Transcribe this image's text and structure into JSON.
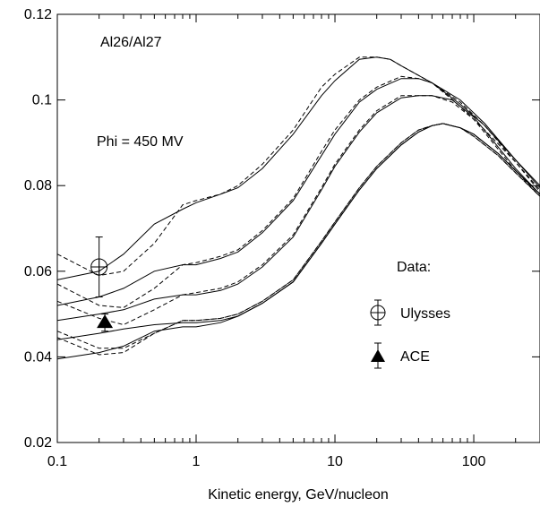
{
  "chart_data": {
    "type": "line",
    "title": "",
    "annotations": [
      "Al26/Al27",
      "Phi = 450 MV"
    ],
    "xlabel": "Kinetic energy, GeV/nucleon",
    "ylabel": "",
    "xscale": "log",
    "xlim": [
      0.1,
      300
    ],
    "ylim": [
      0.02,
      0.12
    ],
    "x_ticks": [
      0.1,
      1,
      10,
      100
    ],
    "x_tick_labels": [
      "0.1",
      "1",
      "10",
      "100"
    ],
    "y_ticks": [
      0.02,
      0.04,
      0.06,
      0.08,
      0.1,
      0.12
    ],
    "y_tick_labels": [
      "0.02",
      "0.04",
      "0.06",
      "0.08",
      "0.1",
      "0.12"
    ],
    "grid": false,
    "legend": {
      "title": "Data:",
      "placement": "right",
      "entries": [
        {
          "label": "Ulysses",
          "marker": "circle-cross-open"
        },
        {
          "label": "ACE",
          "marker": "triangle-filled"
        }
      ]
    },
    "series": [
      {
        "style": "solid",
        "x": [
          0.1,
          0.2,
          0.3,
          0.5,
          0.8,
          1,
          1.5,
          2,
          3,
          5,
          8,
          10,
          15,
          20,
          25,
          30,
          50,
          80,
          120,
          200,
          300
        ],
        "y": [
          0.058,
          0.06,
          0.064,
          0.071,
          0.0745,
          0.076,
          0.078,
          0.0795,
          0.084,
          0.092,
          0.101,
          0.1045,
          0.1095,
          0.11,
          0.1095,
          0.108,
          0.104,
          0.099,
          0.094,
          0.086,
          0.08
        ]
      },
      {
        "style": "dashed",
        "x": [
          0.1,
          0.2,
          0.3,
          0.5,
          0.8,
          1,
          1.5,
          2,
          3,
          5,
          8,
          10,
          15,
          20,
          25,
          30,
          50,
          80,
          120,
          200,
          300
        ],
        "y": [
          0.064,
          0.059,
          0.06,
          0.0665,
          0.0755,
          0.0765,
          0.078,
          0.08,
          0.085,
          0.093,
          0.103,
          0.106,
          0.11,
          0.11,
          0.1095,
          0.108,
          0.104,
          0.0985,
          0.093,
          0.0855,
          0.079
        ]
      },
      {
        "style": "solid",
        "x": [
          0.1,
          0.2,
          0.3,
          0.5,
          0.8,
          1,
          1.5,
          2,
          3,
          5,
          8,
          10,
          15,
          20,
          30,
          40,
          50,
          80,
          120,
          200,
          300
        ],
        "y": [
          0.052,
          0.054,
          0.056,
          0.06,
          0.0615,
          0.0615,
          0.063,
          0.0645,
          0.069,
          0.0765,
          0.087,
          0.092,
          0.0995,
          0.1025,
          0.105,
          0.105,
          0.104,
          0.1,
          0.0945,
          0.086,
          0.0795
        ]
      },
      {
        "style": "dashed",
        "x": [
          0.1,
          0.2,
          0.3,
          0.5,
          0.8,
          1,
          1.5,
          2,
          3,
          5,
          8,
          10,
          15,
          20,
          30,
          40,
          50,
          80,
          120,
          200,
          300
        ],
        "y": [
          0.057,
          0.052,
          0.0515,
          0.056,
          0.0615,
          0.062,
          0.0635,
          0.065,
          0.0695,
          0.077,
          0.088,
          0.093,
          0.1,
          0.103,
          0.1055,
          0.105,
          0.104,
          0.0995,
          0.094,
          0.0855,
          0.0785
        ]
      },
      {
        "style": "solid",
        "x": [
          0.1,
          0.2,
          0.3,
          0.5,
          0.8,
          1,
          1.5,
          2,
          3,
          5,
          8,
          10,
          15,
          20,
          30,
          40,
          50,
          70,
          100,
          150,
          200,
          300
        ],
        "y": [
          0.0485,
          0.05,
          0.051,
          0.0535,
          0.0545,
          0.0545,
          0.0555,
          0.057,
          0.061,
          0.068,
          0.079,
          0.0845,
          0.0925,
          0.097,
          0.1005,
          0.101,
          0.101,
          0.1,
          0.096,
          0.089,
          0.084,
          0.078
        ]
      },
      {
        "style": "dashed",
        "x": [
          0.1,
          0.2,
          0.3,
          0.5,
          0.8,
          1,
          1.5,
          2,
          3,
          5,
          8,
          10,
          15,
          20,
          30,
          40,
          50,
          70,
          100,
          150,
          200,
          300
        ],
        "y": [
          0.053,
          0.049,
          0.0475,
          0.051,
          0.0545,
          0.055,
          0.056,
          0.0575,
          0.0615,
          0.0685,
          0.0795,
          0.085,
          0.093,
          0.0975,
          0.101,
          0.101,
          0.101,
          0.0995,
          0.0955,
          0.0885,
          0.0835,
          0.0775
        ]
      },
      {
        "style": "solid",
        "x": [
          0.1,
          0.2,
          0.3,
          0.5,
          0.8,
          1,
          1.5,
          2,
          3,
          5,
          8,
          10,
          15,
          20,
          30,
          40,
          50,
          60,
          80,
          100,
          150,
          200,
          300
        ],
        "y": [
          0.044,
          0.0455,
          0.0465,
          0.0475,
          0.048,
          0.048,
          0.0485,
          0.0495,
          0.0525,
          0.0575,
          0.0665,
          0.071,
          0.079,
          0.084,
          0.0895,
          0.0925,
          0.094,
          0.0945,
          0.0935,
          0.092,
          0.0875,
          0.0835,
          0.078
        ]
      },
      {
        "style": "dashed",
        "x": [
          0.1,
          0.2,
          0.3,
          0.5,
          0.8,
          1,
          1.5,
          2,
          3,
          5,
          8,
          10,
          15,
          20,
          30,
          40,
          50,
          60,
          80,
          100,
          150,
          200,
          300
        ],
        "y": [
          0.046,
          0.042,
          0.042,
          0.0455,
          0.0485,
          0.0485,
          0.049,
          0.05,
          0.053,
          0.058,
          0.067,
          0.0715,
          0.0795,
          0.0845,
          0.09,
          0.093,
          0.094,
          0.0945,
          0.0935,
          0.0915,
          0.087,
          0.083,
          0.0775
        ]
      },
      {
        "style": "solid",
        "x": [
          0.1,
          0.2,
          0.3,
          0.5,
          0.8,
          1,
          1.5,
          2,
          3,
          5,
          8,
          10,
          15,
          20,
          30,
          40,
          50,
          60,
          80,
          100,
          150,
          200,
          300
        ],
        "y": [
          0.0395,
          0.041,
          0.0425,
          0.046,
          0.047,
          0.047,
          0.048,
          0.0495,
          0.0525,
          0.0575,
          0.0665,
          0.071,
          0.079,
          0.084,
          0.0895,
          0.0925,
          0.094,
          0.0945,
          0.0935,
          0.092,
          0.0875,
          0.0835,
          0.078
        ]
      },
      {
        "style": "dashed",
        "x": [
          0.1,
          0.2,
          0.3,
          0.5,
          0.8,
          1,
          1.5,
          2,
          3,
          5,
          8,
          10,
          15,
          20,
          30,
          40,
          50,
          60,
          80,
          100,
          150,
          200,
          300
        ],
        "y": [
          0.0445,
          0.0405,
          0.041,
          0.0455,
          0.0485,
          0.0485,
          0.049,
          0.05,
          0.053,
          0.058,
          0.067,
          0.0715,
          0.0795,
          0.0845,
          0.09,
          0.093,
          0.094,
          0.0945,
          0.0935,
          0.0915,
          0.087,
          0.083,
          0.0775
        ]
      }
    ],
    "data_points": [
      {
        "name": "Ulysses",
        "marker": "circle-cross-open",
        "x": 0.2,
        "y": 0.061,
        "y_err": [
          0.054,
          0.068
        ]
      },
      {
        "name": "ACE",
        "marker": "triangle-filled",
        "x": 0.22,
        "y": 0.048,
        "y_err": [
          0.046,
          0.05
        ]
      }
    ]
  }
}
